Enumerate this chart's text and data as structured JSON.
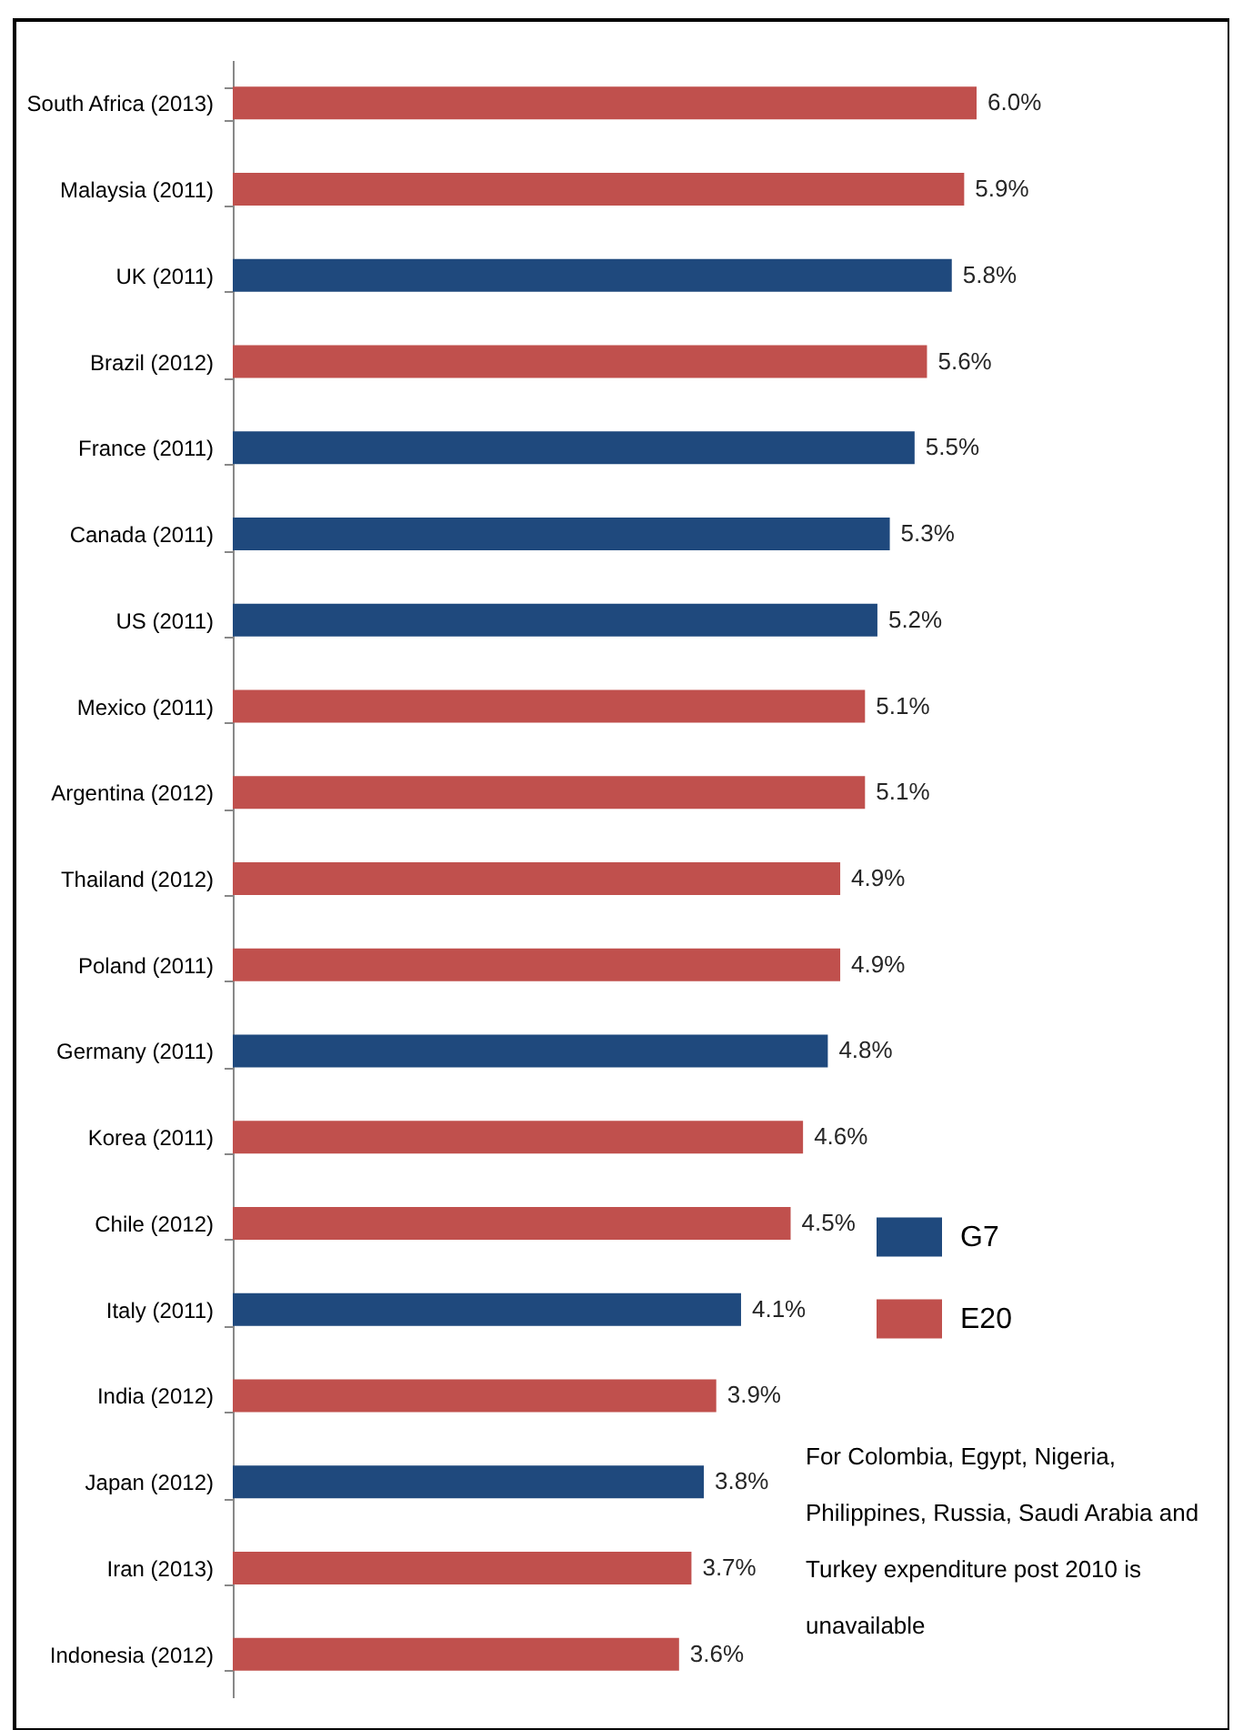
{
  "chart_data": {
    "type": "bar",
    "orientation": "horizontal",
    "categories": [
      "South Africa (2013)",
      "Malaysia (2011)",
      "UK (2011)",
      "Brazil (2012)",
      "France (2011)",
      "Canada (2011)",
      "US (2011)",
      "Mexico (2011)",
      "Argentina (2012)",
      "Thailand (2012)",
      "Poland (2011)",
      "Germany (2011)",
      "Korea (2011)",
      "Chile (2012)",
      "Italy (2011)",
      "India (2012)",
      "Japan (2012)",
      "Iran (2013)",
      "Indonesia (2012)"
    ],
    "series": [
      {
        "name": "G7",
        "color": "#1f497d",
        "values": [
          null,
          null,
          5.8,
          null,
          5.5,
          5.3,
          5.2,
          null,
          null,
          null,
          null,
          4.8,
          null,
          null,
          4.1,
          null,
          3.8,
          null,
          null
        ],
        "value_labels": [
          null,
          null,
          "5.8%",
          null,
          "5.5%",
          "5.3%",
          "5.2%",
          null,
          null,
          null,
          null,
          "4.8%",
          null,
          null,
          "4.1%",
          null,
          "3.8%",
          null,
          null
        ]
      },
      {
        "name": "E20",
        "color": "#c0504d",
        "values": [
          6.0,
          5.9,
          null,
          5.6,
          null,
          null,
          null,
          5.1,
          5.1,
          4.9,
          4.9,
          null,
          4.6,
          4.5,
          null,
          3.9,
          null,
          3.7,
          3.6
        ],
        "value_labels": [
          "6.0%",
          "5.9%",
          null,
          "5.6%",
          null,
          null,
          null,
          "5.1%",
          "5.1%",
          "4.9%",
          "4.9%",
          null,
          "4.6%",
          "4.5%",
          null,
          "3.9%",
          null,
          "3.7%",
          "3.6%"
        ]
      }
    ],
    "legend": "right",
    "annotations": [
      "For Colombia, Egypt, Nigeria, Philippines, Russia, Saudi Arabia and Turkey expenditure post 2010 is unavailable"
    ]
  }
}
